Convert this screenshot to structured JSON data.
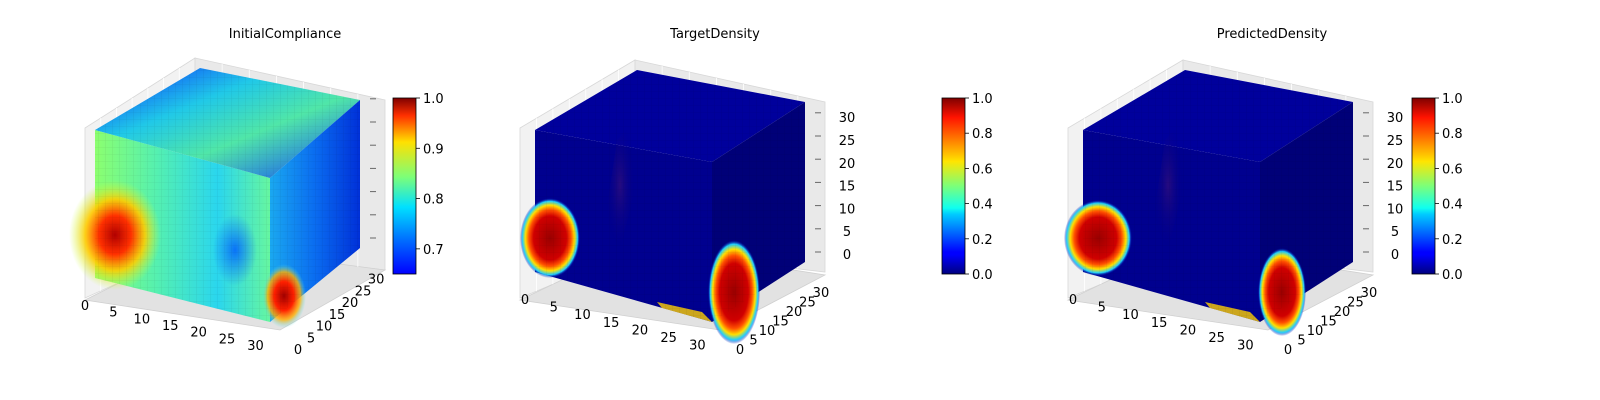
{
  "chart_data": [
    {
      "type": "voxel-3d",
      "title": "InitialCompliance",
      "x_ticks": [
        "0",
        "5",
        "10",
        "15",
        "20",
        "25",
        "30"
      ],
      "y_ticks": [
        "0",
        "5",
        "10",
        "15",
        "20",
        "25",
        "30"
      ],
      "z_ticks": [],
      "colormap": "jet",
      "colorbar": {
        "range": [
          0.65,
          1.0
        ],
        "ticks": [
          "0.7",
          "0.8",
          "0.9",
          "1.0"
        ]
      },
      "grid": true
    },
    {
      "type": "voxel-3d",
      "title": "TargetDensity",
      "x_ticks": [
        "0",
        "5",
        "10",
        "15",
        "20",
        "25",
        "30"
      ],
      "y_ticks": [
        "0",
        "5",
        "10",
        "15",
        "20",
        "25",
        "30"
      ],
      "z_ticks": [
        "0",
        "5",
        "10",
        "15",
        "20",
        "25",
        "30"
      ],
      "colormap": "jet",
      "colorbar": {
        "range": [
          0.0,
          1.0
        ],
        "ticks": [
          "0.0",
          "0.2",
          "0.4",
          "0.6",
          "0.8",
          "1.0"
        ]
      },
      "grid": true
    },
    {
      "type": "voxel-3d",
      "title": "PredictedDensity",
      "x_ticks": [
        "0",
        "5",
        "10",
        "15",
        "20",
        "25",
        "30"
      ],
      "y_ticks": [
        "0",
        "5",
        "10",
        "15",
        "20",
        "25",
        "30"
      ],
      "z_ticks": [
        "0",
        "5",
        "10",
        "15",
        "20",
        "25",
        "30"
      ],
      "colormap": "jet",
      "colorbar": {
        "range": [
          0.0,
          1.0
        ],
        "ticks": [
          "0.0",
          "0.2",
          "0.4",
          "0.6",
          "0.8",
          "1.0"
        ]
      },
      "grid": true
    }
  ]
}
